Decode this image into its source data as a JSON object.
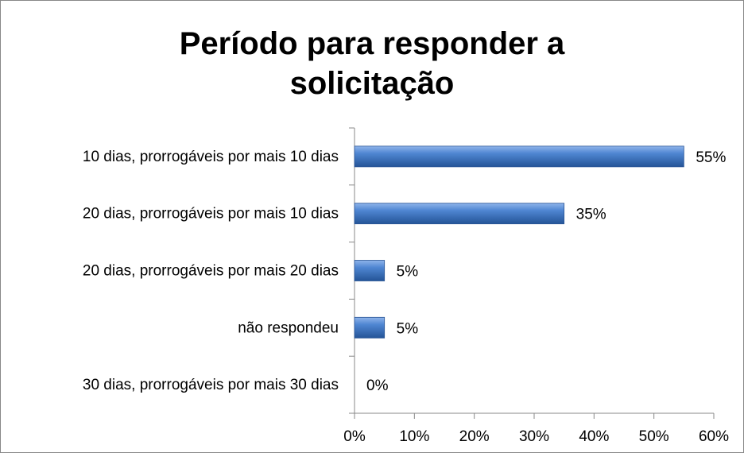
{
  "chart_data": {
    "type": "bar",
    "orientation": "horizontal",
    "title": "Período para responder a solicitação",
    "categories": [
      "10 dias, prorrogáveis por mais 10 dias",
      "20 dias, prorrogáveis por mais 10 dias",
      "20 dias, prorrogáveis por mais 20 dias",
      "não respondeu",
      "30 dias, prorrogáveis por mais 30 dias"
    ],
    "values": [
      55,
      35,
      5,
      5,
      0
    ],
    "value_labels": [
      "55%",
      "35%",
      "5%",
      "5%",
      "0%"
    ],
    "color": "#3a72c4",
    "xlim": [
      0,
      60
    ],
    "xticks": [
      {
        "value": 0,
        "label": "0%"
      },
      {
        "value": 10,
        "label": "10%"
      },
      {
        "value": 20,
        "label": "20%"
      },
      {
        "value": 30,
        "label": "30%"
      },
      {
        "value": 40,
        "label": "40%"
      },
      {
        "value": 50,
        "label": "50%"
      },
      {
        "value": 60,
        "label": "60%"
      }
    ],
    "grid": false
  }
}
